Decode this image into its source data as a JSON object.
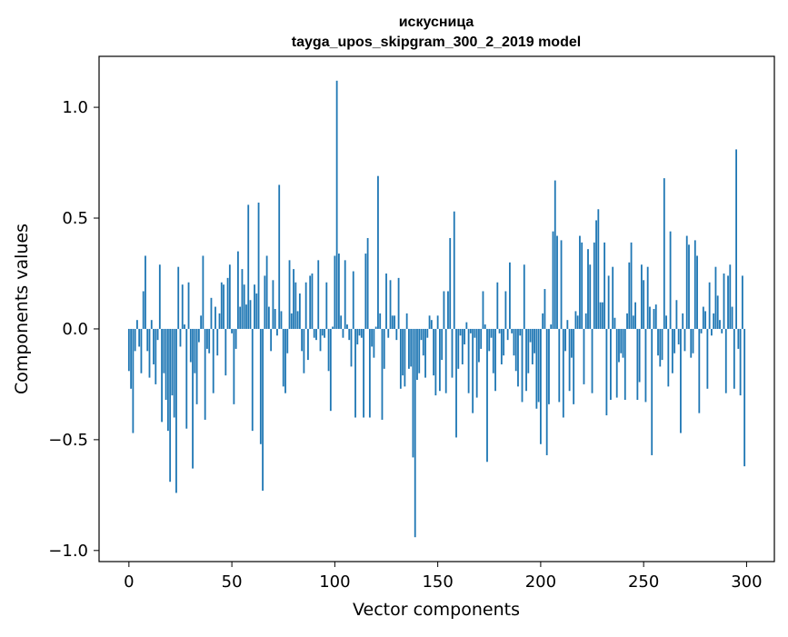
{
  "chart_data": {
    "type": "bar",
    "title": "искусница",
    "subtitle": "tayga_upos_skipgram_300_2_2019 model",
    "xlabel": "Vector components",
    "ylabel": "Components values",
    "xlim": [
      -14.5,
      313.5
    ],
    "ylim": [
      -1.05,
      1.23
    ],
    "x_ticks": [
      0,
      50,
      100,
      150,
      200,
      250,
      300
    ],
    "x_tick_labels": [
      "0",
      "50",
      "100",
      "150",
      "200",
      "250",
      "300"
    ],
    "y_ticks": [
      -1.0,
      -0.5,
      0.0,
      0.5,
      1.0
    ],
    "y_tick_labels": [
      "−1.0",
      "−0.5",
      "0.0",
      "0.5",
      "1.0"
    ],
    "grid": false,
    "bar_color": "#1f77b4",
    "x": [
      0,
      1,
      2,
      3,
      4,
      5,
      6,
      7,
      8,
      9,
      10,
      11,
      12,
      13,
      14,
      15,
      16,
      17,
      18,
      19,
      20,
      21,
      22,
      23,
      24,
      25,
      26,
      27,
      28,
      29,
      30,
      31,
      32,
      33,
      34,
      35,
      36,
      37,
      38,
      39,
      40,
      41,
      42,
      43,
      44,
      45,
      46,
      47,
      48,
      49,
      50,
      51,
      52,
      53,
      54,
      55,
      56,
      57,
      58,
      59,
      60,
      61,
      62,
      63,
      64,
      65,
      66,
      67,
      68,
      69,
      70,
      71,
      72,
      73,
      74,
      75,
      76,
      77,
      78,
      79,
      80,
      81,
      82,
      83,
      84,
      85,
      86,
      87,
      88,
      89,
      90,
      91,
      92,
      93,
      94,
      95,
      96,
      97,
      98,
      99,
      100,
      101,
      102,
      103,
      104,
      105,
      106,
      107,
      108,
      109,
      110,
      111,
      112,
      113,
      114,
      115,
      116,
      117,
      118,
      119,
      120,
      121,
      122,
      123,
      124,
      125,
      126,
      127,
      128,
      129,
      130,
      131,
      132,
      133,
      134,
      135,
      136,
      137,
      138,
      139,
      140,
      141,
      142,
      143,
      144,
      145,
      146,
      147,
      148,
      149,
      150,
      151,
      152,
      153,
      154,
      155,
      156,
      157,
      158,
      159,
      160,
      161,
      162,
      163,
      164,
      165,
      166,
      167,
      168,
      169,
      170,
      171,
      172,
      173,
      174,
      175,
      176,
      177,
      178,
      179,
      180,
      181,
      182,
      183,
      184,
      185,
      186,
      187,
      188,
      189,
      190,
      191,
      192,
      193,
      194,
      195,
      196,
      197,
      198,
      199,
      200,
      201,
      202,
      203,
      204,
      205,
      206,
      207,
      208,
      209,
      210,
      211,
      212,
      213,
      214,
      215,
      216,
      217,
      218,
      219,
      220,
      221,
      222,
      223,
      224,
      225,
      226,
      227,
      228,
      229,
      230,
      231,
      232,
      233,
      234,
      235,
      236,
      237,
      238,
      239,
      240,
      241,
      242,
      243,
      244,
      245,
      246,
      247,
      248,
      249,
      250,
      251,
      252,
      253,
      254,
      255,
      256,
      257,
      258,
      259,
      260,
      261,
      262,
      263,
      264,
      265,
      266,
      267,
      268,
      269,
      270,
      271,
      272,
      273,
      274,
      275,
      276,
      277,
      278,
      279,
      280,
      281,
      282,
      283,
      284,
      285,
      286,
      287,
      288,
      289,
      290,
      291,
      292,
      293,
      294,
      295,
      296,
      297,
      298,
      299
    ],
    "values": [
      -0.19,
      -0.27,
      -0.47,
      -0.1,
      0.04,
      -0.08,
      -0.2,
      0.17,
      0.33,
      -0.1,
      -0.22,
      0.04,
      -0.16,
      -0.25,
      -0.05,
      0.29,
      -0.42,
      -0.2,
      -0.32,
      -0.46,
      -0.69,
      -0.3,
      -0.4,
      -0.74,
      0.28,
      -0.08,
      0.2,
      0.02,
      -0.45,
      0.21,
      -0.15,
      -0.63,
      -0.2,
      -0.34,
      -0.06,
      0.06,
      0.33,
      -0.41,
      -0.09,
      -0.11,
      0.14,
      -0.29,
      0.1,
      -0.12,
      0.07,
      0.21,
      0.2,
      -0.21,
      0.23,
      0.29,
      -0.02,
      -0.34,
      -0.09,
      0.35,
      0.1,
      0.27,
      0.2,
      0.11,
      0.56,
      0.13,
      -0.46,
      0.2,
      0.16,
      0.57,
      -0.52,
      -0.73,
      0.24,
      0.33,
      0.1,
      -0.1,
      0.22,
      0.09,
      -0.03,
      0.65,
      0.08,
      -0.26,
      -0.29,
      -0.11,
      0.31,
      0.07,
      0.27,
      0.21,
      0.08,
      0.16,
      -0.1,
      -0.2,
      0.21,
      -0.14,
      0.24,
      0.25,
      -0.04,
      -0.05,
      0.31,
      -0.1,
      -0.03,
      -0.04,
      0.21,
      -0.19,
      -0.37,
      0.01,
      0.33,
      1.12,
      0.34,
      0.06,
      -0.04,
      0.31,
      0.02,
      -0.05,
      -0.17,
      0.26,
      -0.4,
      -0.07,
      -0.03,
      -0.04,
      -0.4,
      0.34,
      0.41,
      -0.4,
      -0.08,
      -0.13,
      0.01,
      0.69,
      0.07,
      -0.41,
      -0.18,
      0.25,
      -0.04,
      0.22,
      0.06,
      0.06,
      -0.05,
      0.23,
      -0.27,
      -0.21,
      -0.26,
      0.07,
      -0.18,
      -0.17,
      -0.58,
      -0.94,
      -0.23,
      -0.2,
      -0.05,
      -0.12,
      -0.22,
      -0.04,
      0.06,
      0.04,
      -0.21,
      -0.3,
      0.06,
      -0.28,
      -0.14,
      0.17,
      -0.29,
      0.17,
      0.41,
      -0.22,
      0.53,
      -0.49,
      -0.18,
      -0.03,
      -0.16,
      -0.07,
      0.03,
      -0.29,
      -0.02,
      -0.38,
      -0.04,
      -0.31,
      -0.15,
      -0.09,
      0.17,
      0.02,
      -0.6,
      -0.1,
      -0.04,
      -0.2,
      -0.28,
      0.21,
      -0.02,
      -0.16,
      -0.12,
      0.17,
      -0.05,
      0.3,
      -0.02,
      -0.12,
      -0.19,
      -0.26,
      -0.03,
      -0.33,
      0.29,
      -0.28,
      -0.2,
      -0.06,
      -0.16,
      -0.11,
      -0.36,
      -0.33,
      -0.52,
      0.07,
      0.18,
      -0.57,
      -0.34,
      0.02,
      0.44,
      0.67,
      0.42,
      -0.33,
      0.4,
      -0.4,
      -0.1,
      0.04,
      -0.28,
      -0.13,
      -0.34,
      0.08,
      0.06,
      0.42,
      0.39,
      -0.25,
      0.07,
      0.36,
      0.29,
      -0.29,
      0.39,
      0.49,
      0.54,
      0.12,
      0.12,
      0.39,
      -0.39,
      0.24,
      -0.32,
      0.28,
      0.05,
      -0.31,
      -0.15,
      -0.11,
      -0.13,
      -0.32,
      0.07,
      0.3,
      0.39,
      0.06,
      0.12,
      -0.32,
      -0.24,
      0.29,
      0.22,
      -0.33,
      0.28,
      0.1,
      -0.57,
      0.09,
      0.11,
      -0.12,
      -0.17,
      -0.14,
      0.68,
      0.06,
      -0.26,
      0.44,
      -0.2,
      -0.11,
      0.13,
      -0.07,
      -0.47,
      0.07,
      -0.1,
      0.42,
      0.38,
      -0.13,
      -0.11,
      0.4,
      0.33,
      -0.38,
      -0.02,
      0.1,
      0.08,
      -0.27,
      0.21,
      -0.03,
      0.07,
      0.28,
      0.15,
      0.04,
      -0.02,
      0.25,
      -0.29,
      0.24,
      0.29,
      0.1,
      -0.27,
      0.81,
      -0.09,
      -0.3,
      0.24,
      -0.62
    ]
  }
}
